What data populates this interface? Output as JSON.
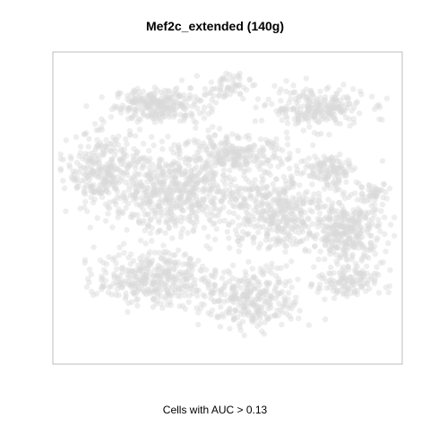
{
  "title": "Mef2c_extended (140g)",
  "caption": "Cells with AUC > 0.13",
  "chart_data": {
    "type": "scatter",
    "title": "Mef2c_extended (140g)",
    "xlabel": "",
    "ylabel": "",
    "subtitle": "Cells with AUC > 0.13",
    "xlim": [
      0,
      100
    ],
    "ylim": [
      0,
      100
    ],
    "axes_visible": false,
    "grid": false,
    "legend": "none",
    "point_color": "#d9d9d9",
    "point_opacity": 0.45,
    "highlighted_points": 0,
    "clusters": [
      {
        "cx": 30,
        "cy": 84,
        "rx": 12,
        "ry": 5,
        "n": 260
      },
      {
        "cx": 50,
        "cy": 90,
        "rx": 6,
        "ry": 4,
        "n": 60
      },
      {
        "cx": 76,
        "cy": 83,
        "rx": 13,
        "ry": 6,
        "n": 240
      },
      {
        "cx": 52,
        "cy": 67,
        "rx": 14,
        "ry": 6,
        "n": 240
      },
      {
        "cx": 80,
        "cy": 63,
        "rx": 8,
        "ry": 5,
        "n": 120
      },
      {
        "cx": 93,
        "cy": 55,
        "rx": 4,
        "ry": 3,
        "n": 40
      },
      {
        "cx": 14,
        "cy": 62,
        "rx": 10,
        "ry": 12,
        "n": 300
      },
      {
        "cx": 35,
        "cy": 55,
        "rx": 16,
        "ry": 12,
        "n": 520
      },
      {
        "cx": 64,
        "cy": 49,
        "rx": 14,
        "ry": 12,
        "n": 420
      },
      {
        "cx": 85,
        "cy": 42,
        "rx": 10,
        "ry": 10,
        "n": 320
      },
      {
        "cx": 28,
        "cy": 27,
        "rx": 15,
        "ry": 8,
        "n": 360
      },
      {
        "cx": 57,
        "cy": 20,
        "rx": 13,
        "ry": 9,
        "n": 300
      },
      {
        "cx": 85,
        "cy": 25,
        "rx": 8,
        "ry": 5,
        "n": 120
      }
    ]
  }
}
